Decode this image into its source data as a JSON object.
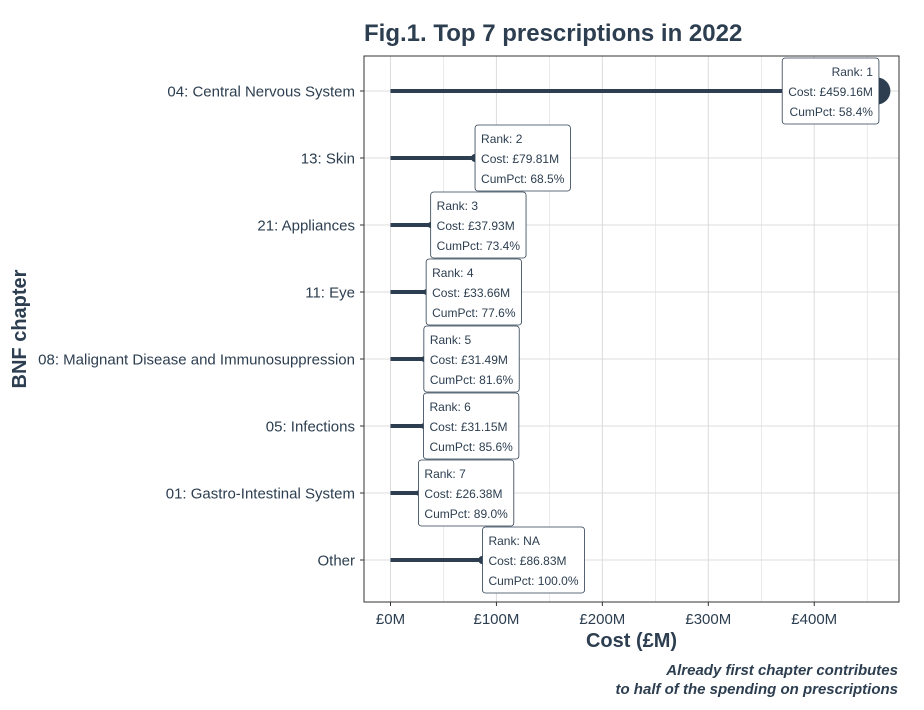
{
  "colors": {
    "ink": "#2c3e50",
    "grid": "#dcdcdc",
    "panel_border": "#333333",
    "label_bg": "#ffffff"
  },
  "chart_data": {
    "type": "lollipop",
    "orientation": "horizontal",
    "title": "Fig.1. Top 7 prescriptions in 2022",
    "xlabel": "Cost (£M)",
    "ylabel": "BNF chapter",
    "xlim": [
      -25,
      480
    ],
    "x_ticks": [
      0,
      100,
      200,
      300,
      400
    ],
    "x_tick_labels": [
      "£0M",
      "£100M",
      "£200M",
      "£300M",
      "£400M"
    ],
    "grid": true,
    "caption": [
      "Already first chapter contributes",
      "to half of the spending on prescriptions"
    ],
    "categories": [
      "04: Central Nervous System",
      "13: Skin",
      "21: Appliances",
      "11: Eye",
      "08: Malignant Disease and Immunosuppression",
      "05: Infections",
      "01: Gastro-Intestinal System",
      "Other"
    ],
    "values": [
      459.16,
      79.81,
      37.93,
      33.66,
      31.49,
      31.15,
      26.38,
      86.83
    ],
    "labels": [
      [
        "Rank: 1",
        "Cost: £459.16M",
        "CumPct: 58.4%"
      ],
      [
        "Rank: 2",
        "Cost: £79.81M",
        "CumPct: 68.5%"
      ],
      [
        "Rank: 3",
        "Cost: £37.93M",
        "CumPct: 73.4%"
      ],
      [
        "Rank: 4",
        "Cost: £33.66M",
        "CumPct: 77.6%"
      ],
      [
        "Rank: 5",
        "Cost: £31.49M",
        "CumPct: 81.6%"
      ],
      [
        "Rank: 6",
        "Cost: £31.15M",
        "CumPct: 85.6%"
      ],
      [
        "Rank: 7",
        "Cost: £26.38M",
        "CumPct: 89.0%"
      ],
      [
        "Rank: NA",
        "Cost: £86.83M",
        "CumPct: 100.0%"
      ]
    ]
  }
}
